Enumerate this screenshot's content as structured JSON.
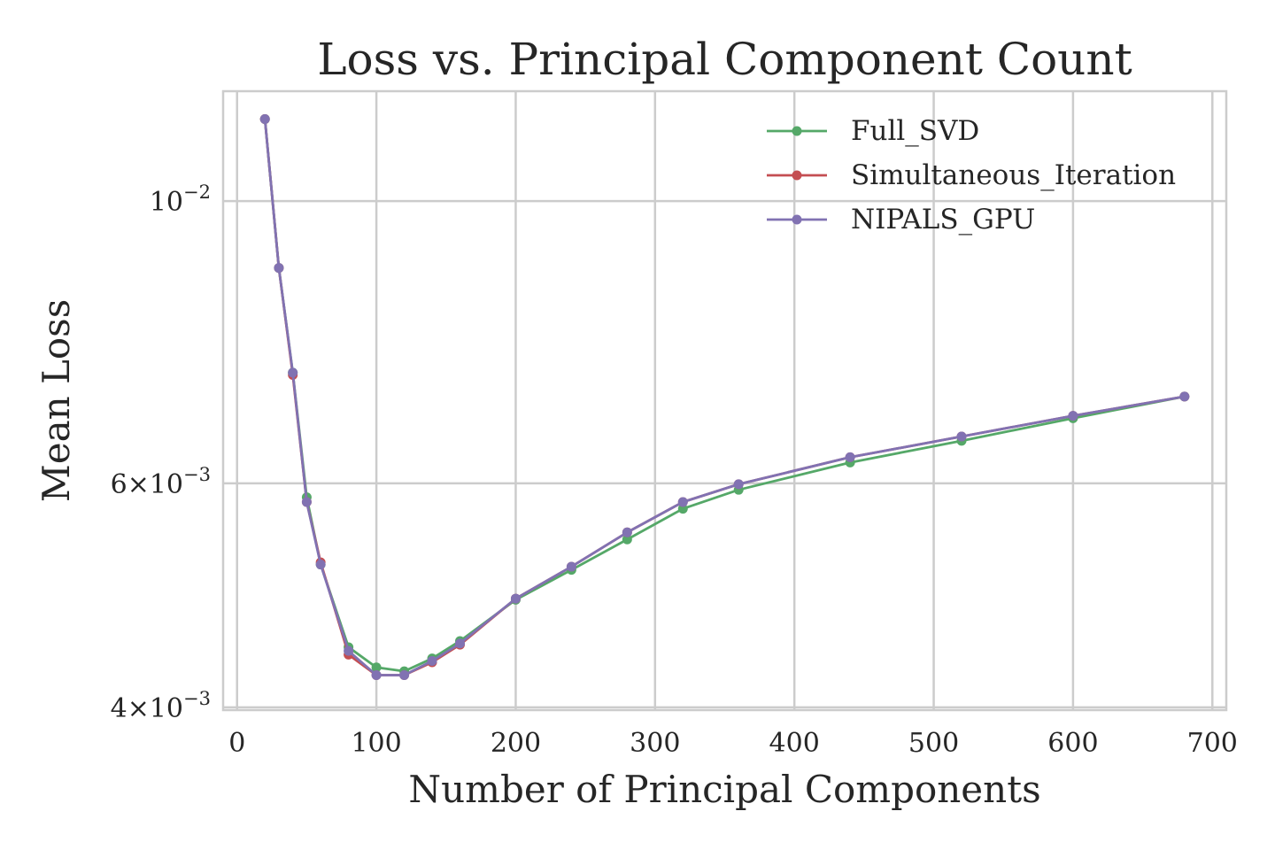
{
  "chart_data": {
    "type": "line",
    "title": "Loss vs. Principal Component Count",
    "xlabel": "Number of Principal Components",
    "ylabel": "Mean Loss",
    "xlim": [
      -10,
      710
    ],
    "ylim": [
      0.00398,
      0.0122
    ],
    "yscale": "log",
    "grid": true,
    "legend_position": "top-right",
    "x_ticks": [
      {
        "value": 0,
        "label": "0"
      },
      {
        "value": 100,
        "label": "100"
      },
      {
        "value": 200,
        "label": "200"
      },
      {
        "value": 300,
        "label": "300"
      },
      {
        "value": 400,
        "label": "400"
      },
      {
        "value": 500,
        "label": "500"
      },
      {
        "value": 600,
        "label": "600"
      },
      {
        "value": 700,
        "label": "700"
      }
    ],
    "y_ticks": [
      {
        "value": 0.01,
        "base": "10",
        "exp": "−2"
      },
      {
        "value": 0.006,
        "base": "6×10",
        "exp": "−3"
      },
      {
        "value": 0.004,
        "base": "4×10",
        "exp": "−3"
      }
    ],
    "x": [
      20,
      30,
      40,
      50,
      60,
      80,
      100,
      120,
      140,
      160,
      200,
      240,
      280,
      320,
      360,
      440,
      520,
      600,
      680
    ],
    "series": [
      {
        "name": "Full_SVD",
        "color": "#55a868",
        "values": [
          0.0116,
          0.00886,
          0.00733,
          0.00585,
          0.00518,
          0.00446,
          0.0043,
          0.00427,
          0.00437,
          0.00451,
          0.00486,
          0.00513,
          0.00542,
          0.00573,
          0.00593,
          0.00623,
          0.00648,
          0.00675,
          0.00702
        ]
      },
      {
        "name": "Simultaneous_Iteration",
        "color": "#c44e52",
        "values": [
          0.0116,
          0.00886,
          0.0073,
          0.0058,
          0.0052,
          0.0044,
          0.00424,
          0.00424,
          0.00434,
          0.00448,
          0.00487,
          0.00516,
          0.00549,
          0.0058,
          0.00599,
          0.00629,
          0.00653,
          0.00678,
          0.00702
        ]
      },
      {
        "name": "NIPALS_GPU",
        "color": "#8172b2",
        "values": [
          0.0116,
          0.00886,
          0.00733,
          0.0058,
          0.00518,
          0.00443,
          0.00424,
          0.00424,
          0.00435,
          0.00449,
          0.00487,
          0.00516,
          0.00549,
          0.0058,
          0.00599,
          0.00629,
          0.00653,
          0.00678,
          0.00702
        ]
      }
    ]
  }
}
